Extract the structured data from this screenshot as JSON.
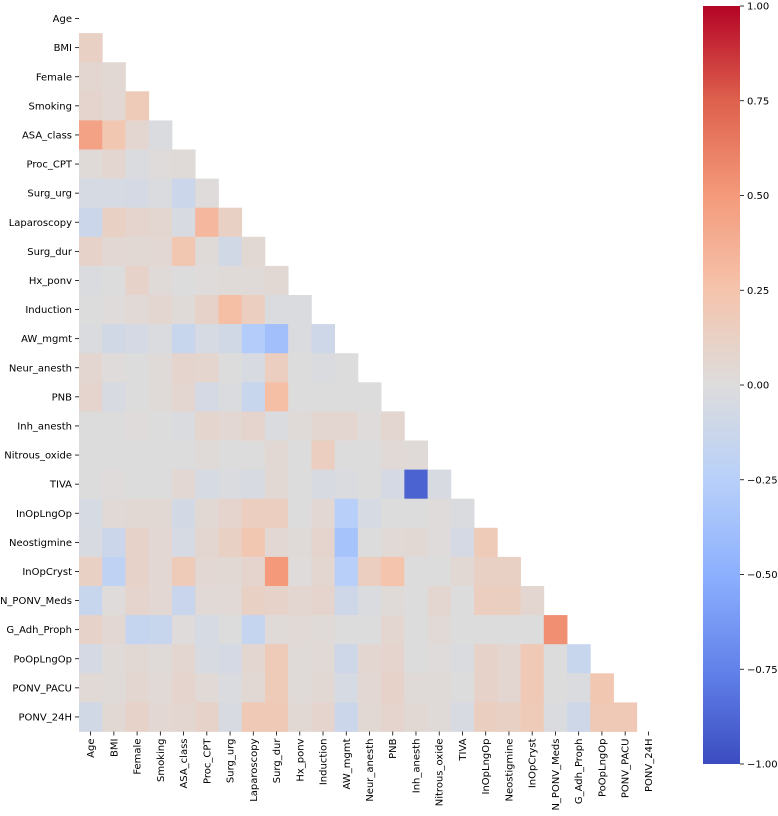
{
  "chart_data": {
    "type": "heatmap",
    "title": "",
    "variables": [
      "Age",
      "BMI",
      "Female",
      "Smoking",
      "ASA_class",
      "Proc_CPT",
      "Surg_urg",
      "Laparoscopy",
      "Surg_dur",
      "Hx_ponv",
      "Induction",
      "AW_mgmt",
      "Neur_anesth",
      "PNB",
      "Inh_anesth",
      "Nitrous_oxide",
      "TIVA",
      "InOpLngOp",
      "Neostigmine",
      "InOpCryst",
      "N_PONV_Meds",
      "G_Adh_Proph",
      "PoOpLngOp",
      "PONV_PACU",
      "PONV_24H"
    ],
    "mask": "upper-triangle-including-diagonal",
    "vmin": -1.0,
    "vmax": 1.0,
    "colormap": "coolwarm",
    "colorbar_ticks": [
      "1.00",
      "0.75",
      "0.50",
      "0.25",
      "0.00",
      "−0.25",
      "−0.50",
      "−0.75",
      "−1.00"
    ],
    "matrix": [
      [],
      [
        0.12
      ],
      [
        0.06,
        0.04
      ],
      [
        0.08,
        0.05,
        0.18
      ],
      [
        0.45,
        0.22,
        0.06,
        -0.03
      ],
      [
        0.02,
        0.06,
        -0.02,
        0.01,
        0.02
      ],
      [
        -0.05,
        -0.05,
        -0.06,
        -0.02,
        -0.12,
        0.01
      ],
      [
        -0.12,
        0.12,
        0.08,
        0.06,
        -0.04,
        0.32,
        0.12
      ],
      [
        0.1,
        0.05,
        0.04,
        0.05,
        0.22,
        0.02,
        -0.08,
        0.04
      ],
      [
        -0.02,
        -0.01,
        0.1,
        0.02,
        -0.01,
        0.01,
        0.02,
        0.02,
        0.04
      ],
      [
        -0.01,
        0.01,
        0.03,
        0.06,
        0.02,
        0.1,
        0.28,
        0.15,
        -0.03,
        -0.02
      ],
      [
        -0.02,
        -0.08,
        -0.06,
        -0.03,
        -0.15,
        -0.05,
        -0.08,
        -0.28,
        -0.38,
        -0.03,
        -0.1
      ],
      [
        0.06,
        0.01,
        0.0,
        0.02,
        0.08,
        0.07,
        0.0,
        -0.04,
        0.15,
        -0.01,
        -0.02,
        0.0
      ],
      [
        0.08,
        -0.04,
        0.0,
        0.02,
        0.06,
        -0.06,
        -0.02,
        -0.15,
        0.28,
        0.0,
        0.0,
        0.0,
        0.0
      ],
      [
        0.0,
        -0.01,
        0.01,
        0.0,
        -0.02,
        0.07,
        0.05,
        0.08,
        -0.03,
        0.02,
        0.06,
        0.06,
        0.01,
        0.06
      ],
      [
        0.0,
        0.0,
        -0.01,
        0.0,
        -0.01,
        0.02,
        -0.01,
        0.0,
        0.04,
        0.0,
        0.15,
        0.0,
        0.0,
        0.03,
        0.02
      ],
      [
        0.0,
        0.01,
        -0.01,
        0.0,
        0.05,
        -0.05,
        -0.03,
        -0.04,
        0.04,
        -0.01,
        -0.04,
        -0.02,
        -0.01,
        -0.06,
        -0.9,
        -0.04
      ],
      [
        -0.05,
        0.03,
        0.04,
        0.04,
        -0.07,
        0.04,
        0.08,
        0.15,
        0.15,
        -0.01,
        0.05,
        -0.25,
        -0.05,
        0.0,
        0.0,
        0.01,
        -0.02
      ],
      [
        -0.04,
        -0.12,
        0.1,
        0.05,
        -0.05,
        0.06,
        0.12,
        0.22,
        0.05,
        0.02,
        0.08,
        -0.35,
        0.0,
        0.03,
        0.04,
        0.01,
        -0.06,
        0.18
      ],
      [
        0.12,
        -0.2,
        0.1,
        0.05,
        0.18,
        0.05,
        0.04,
        0.08,
        0.5,
        0.01,
        0.06,
        -0.25,
        0.15,
        0.25,
        0.0,
        0.0,
        0.04,
        0.12,
        0.12
      ],
      [
        -0.15,
        0.01,
        0.08,
        0.05,
        -0.14,
        0.03,
        0.03,
        0.12,
        0.1,
        0.06,
        0.08,
        -0.1,
        -0.02,
        0.02,
        0.0,
        0.06,
        -0.01,
        0.15,
        0.14,
        0.06
      ],
      [
        0.1,
        0.05,
        -0.16,
        -0.15,
        0.01,
        -0.05,
        0.0,
        -0.16,
        0.02,
        0.03,
        0.02,
        0.0,
        0.0,
        0.06,
        0.0,
        0.03,
        0.0,
        -0.01,
        0.0,
        0.0,
        0.55
      ],
      [
        -0.06,
        0.02,
        0.04,
        0.02,
        0.06,
        -0.04,
        -0.06,
        0.06,
        0.18,
        0.02,
        0.03,
        -0.1,
        0.06,
        0.08,
        0.0,
        0.01,
        -0.02,
        0.1,
        0.06,
        0.2,
        0.0,
        -0.15
      ],
      [
        0.03,
        0.02,
        0.06,
        0.03,
        0.08,
        0.03,
        -0.02,
        0.04,
        0.18,
        0.02,
        0.04,
        -0.05,
        0.05,
        0.1,
        0.02,
        0.02,
        0.0,
        0.1,
        0.06,
        0.2,
        0.0,
        -0.03,
        0.22
      ],
      [
        -0.08,
        0.04,
        0.1,
        0.05,
        0.06,
        0.1,
        -0.04,
        0.2,
        0.2,
        0.04,
        0.08,
        -0.12,
        0.04,
        0.08,
        0.04,
        0.02,
        -0.04,
        0.14,
        0.12,
        0.18,
        -0.02,
        -0.1,
        0.2,
        0.2
      ]
    ]
  }
}
